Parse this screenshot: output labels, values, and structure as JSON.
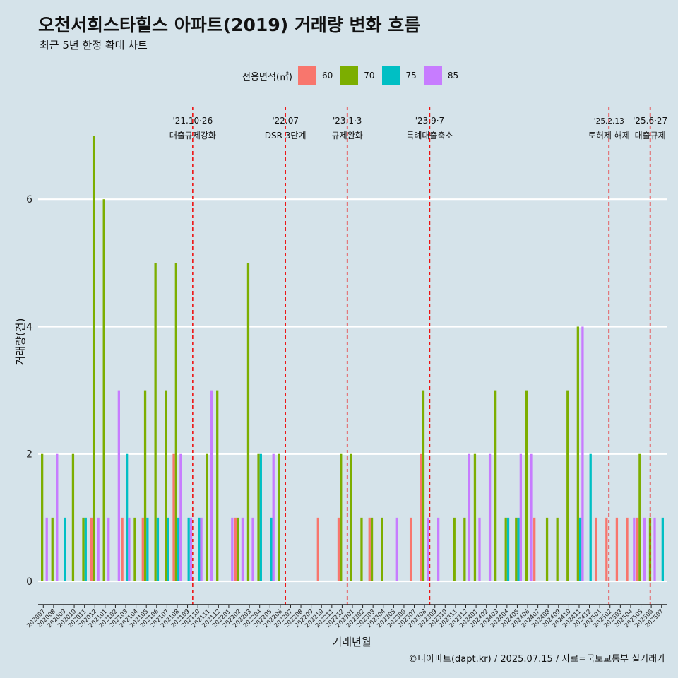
{
  "title": "오천서희스타힐스 아파트(2019) 거래량 변화 흐름",
  "subtitle": "최근 5년 한정 확대 차트",
  "caption": "©디아파트(dapt.kr) / 2025.07.15 / 자료=국토교통부 실거래가",
  "legend": {
    "title": "전용면적(㎡)",
    "items": [
      {
        "label": "60",
        "color": "#f8766d"
      },
      {
        "label": "70",
        "color": "#7cae00"
      },
      {
        "label": "75",
        "color": "#00bfc4"
      },
      {
        "label": "85",
        "color": "#c77cff"
      }
    ]
  },
  "chart_data": {
    "type": "bar",
    "xlabel": "거래년월",
    "ylabel": "거래량(건)",
    "ylim": [
      0,
      7.5
    ],
    "yticks": [
      0,
      2,
      4,
      6
    ],
    "grid": "horizontal major lines only",
    "legend_position": "top",
    "categories": [
      "202007",
      "202008",
      "202009",
      "202010",
      "202011",
      "202012",
      "202101",
      "202102",
      "202103",
      "202104",
      "202105",
      "202106",
      "202107",
      "202108",
      "202109",
      "202110",
      "202111",
      "202112",
      "202201",
      "202202",
      "202203",
      "202204",
      "202205",
      "202206",
      "202207",
      "202208",
      "202209",
      "202210",
      "202211",
      "202212",
      "202301",
      "202302",
      "202303",
      "202304",
      "202305",
      "202306",
      "202307",
      "202308",
      "202309",
      "202310",
      "202311",
      "202312",
      "202401",
      "202402",
      "202403",
      "202404",
      "202405",
      "202406",
      "202407",
      "202408",
      "202409",
      "202410",
      "202411",
      "202412",
      "202501",
      "202502",
      "202503",
      "202504",
      "202505",
      "202506",
      "202507"
    ],
    "series": [
      {
        "name": "60",
        "color": "#f8766d",
        "values": [
          0,
          0,
          0,
          0,
          0,
          1,
          0,
          0,
          1,
          0,
          1,
          0,
          0,
          2,
          0,
          0,
          0,
          0,
          0,
          1,
          0,
          0,
          0,
          0,
          0,
          0,
          0,
          1,
          0,
          1,
          0,
          0,
          1,
          0,
          0,
          0,
          1,
          2,
          0,
          0,
          0,
          0,
          0,
          0,
          0,
          0,
          0,
          0,
          1,
          0,
          0,
          0,
          0,
          0,
          1,
          1,
          1,
          1,
          1,
          0,
          0
        ]
      },
      {
        "name": "70",
        "color": "#7cae00",
        "values": [
          2,
          1,
          0,
          2,
          1,
          7,
          6,
          0,
          0,
          1,
          3,
          5,
          3,
          5,
          0,
          0,
          2,
          3,
          0,
          1,
          5,
          2,
          0,
          2,
          0,
          0,
          0,
          0,
          0,
          2,
          2,
          1,
          1,
          1,
          0,
          0,
          0,
          3,
          0,
          0,
          1,
          1,
          2,
          0,
          3,
          1,
          1,
          3,
          0,
          1,
          1,
          3,
          4,
          0,
          0,
          0,
          0,
          0,
          2,
          1,
          0
        ]
      },
      {
        "name": "75",
        "color": "#00bfc4",
        "values": [
          0,
          0,
          1,
          0,
          1,
          0,
          0,
          0,
          2,
          0,
          1,
          1,
          1,
          1,
          1,
          1,
          0,
          0,
          0,
          0,
          0,
          2,
          1,
          0,
          0,
          0,
          0,
          0,
          0,
          0,
          0,
          0,
          0,
          0,
          0,
          0,
          0,
          0,
          0,
          0,
          0,
          0,
          0,
          0,
          0,
          1,
          1,
          0,
          0,
          0,
          0,
          0,
          1,
          2,
          0,
          0,
          0,
          0,
          0,
          0,
          1
        ]
      },
      {
        "name": "85",
        "color": "#c77cff",
        "values": [
          1,
          2,
          0,
          0,
          0,
          1,
          1,
          3,
          1,
          0,
          0,
          0,
          0,
          2,
          1,
          1,
          3,
          0,
          1,
          1,
          1,
          0,
          2,
          0,
          0,
          0,
          0,
          0,
          0,
          0,
          0,
          0,
          0,
          0,
          1,
          0,
          0,
          1,
          1,
          0,
          0,
          2,
          1,
          2,
          0,
          0,
          2,
          2,
          0,
          0,
          0,
          0,
          4,
          0,
          0,
          0,
          0,
          1,
          1,
          1,
          0
        ]
      }
    ],
    "events": [
      {
        "date": "'21.10·26",
        "label": "대출규제강화",
        "position": 15
      },
      {
        "date": "'22.07",
        "label": "DSR 3단계",
        "position": 24
      },
      {
        "date": "'23.1·3",
        "label": "규제완화",
        "position": 30
      },
      {
        "date": "'23.9·7",
        "label": "특례대출축소",
        "position": 38
      },
      {
        "date": "'25.2.13",
        "label": "토허제 해제",
        "position": 55.4
      },
      {
        "date": "'25.6·27",
        "label": "대출규제",
        "position": 59.4
      }
    ]
  }
}
